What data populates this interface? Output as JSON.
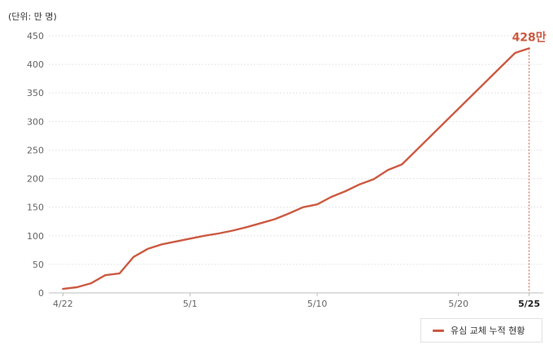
{
  "chart_data": {
    "type": "line",
    "unit_label": "(단위: 만 명)",
    "series": [
      {
        "name": "유심 교체 누적 현황",
        "color": "#cc5a42",
        "points": [
          {
            "x": "4/22",
            "y": 7
          },
          {
            "x": "4/23",
            "y": 10
          },
          {
            "x": "4/24",
            "y": 17
          },
          {
            "x": "4/25",
            "y": 31
          },
          {
            "x": "4/26",
            "y": 34
          },
          {
            "x": "4/27",
            "y": 63
          },
          {
            "x": "4/28",
            "y": 77
          },
          {
            "x": "4/29",
            "y": 85
          },
          {
            "x": "4/30",
            "y": 90
          },
          {
            "x": "5/1",
            "y": 95
          },
          {
            "x": "5/2",
            "y": 100
          },
          {
            "x": "5/3",
            "y": 104
          },
          {
            "x": "5/4",
            "y": 109
          },
          {
            "x": "5/5",
            "y": 115
          },
          {
            "x": "5/6",
            "y": 122
          },
          {
            "x": "5/7",
            "y": 129
          },
          {
            "x": "5/8",
            "y": 139
          },
          {
            "x": "5/9",
            "y": 150
          },
          {
            "x": "5/10",
            "y": 155
          },
          {
            "x": "5/11",
            "y": 168
          },
          {
            "x": "5/12",
            "y": 178
          },
          {
            "x": "5/13",
            "y": 190
          },
          {
            "x": "5/14",
            "y": 199
          },
          {
            "x": "5/15",
            "y": 215
          },
          {
            "x": "5/16",
            "y": 225
          },
          {
            "x": "5/24",
            "y": 420
          },
          {
            "x": "5/25",
            "y": 428
          }
        ]
      }
    ],
    "x_ticks": [
      "4/22",
      "5/1",
      "5/10",
      "5/20",
      "5/25"
    ],
    "highlight_tick": "5/25",
    "y_ticks": [
      0,
      50,
      100,
      150,
      200,
      250,
      300,
      350,
      400,
      450
    ],
    "ylim": [
      0,
      450
    ],
    "x_range": [
      "4/21",
      "5/26"
    ],
    "grid": true,
    "legend_position": "bottom-right",
    "annotation": {
      "x": "5/25",
      "text": "428만"
    }
  }
}
